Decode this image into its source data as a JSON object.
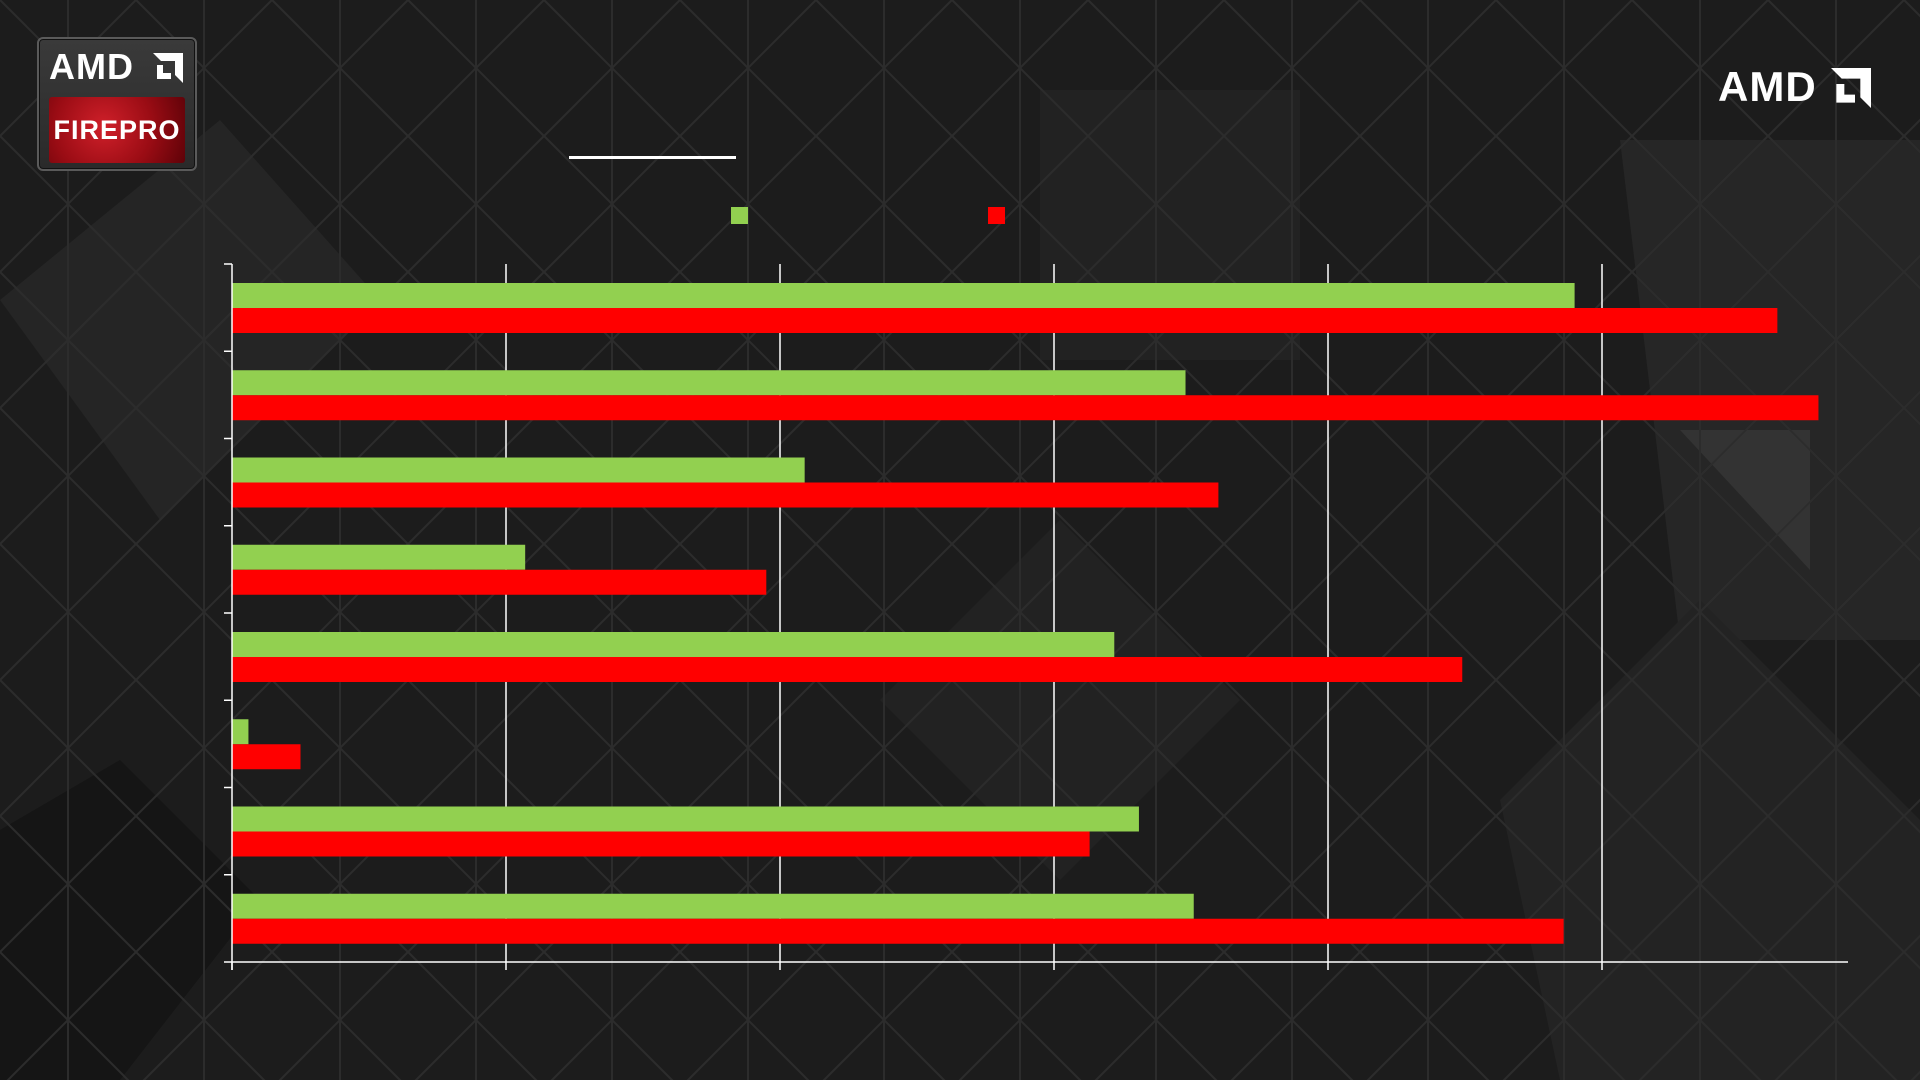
{
  "logos": {
    "badge_top": "AMD",
    "badge_bottom": "FIREPRO",
    "corner": "AMD"
  },
  "colors": {
    "background": "#1c1c1c",
    "series_green": "#92d050",
    "series_red": "#ff0000",
    "axis": "#ffffff"
  },
  "chart_data": {
    "type": "bar",
    "orientation": "horizontal",
    "title": "",
    "xlabel": "",
    "ylabel": "",
    "xlim": [
      0,
      5.9
    ],
    "x_gridlines": [
      0,
      1,
      2,
      3,
      4,
      5
    ],
    "grid": true,
    "legend": "top-center",
    "categories": [
      "",
      "",
      "",
      "",
      "",
      "",
      "",
      ""
    ],
    "series": [
      {
        "color": "#92d050",
        "values": [
          4.9,
          3.48,
          2.09,
          1.07,
          3.22,
          0.06,
          3.31,
          3.51
        ]
      },
      {
        "color": "#ff0000",
        "values": [
          5.64,
          5.79,
          3.6,
          1.95,
          4.49,
          0.25,
          3.13,
          4.86
        ]
      }
    ]
  }
}
